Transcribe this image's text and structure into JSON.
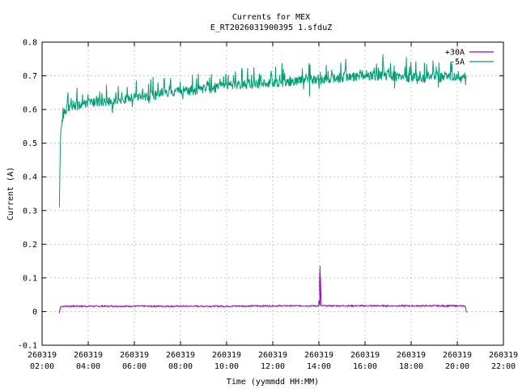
{
  "chart_data": {
    "type": "line",
    "title": "Currents for MEX",
    "subtitle": "E_RT2026031900395 1.sfduZ",
    "xlabel": "Time (yymmdd HH:MM)",
    "ylabel": "Current (A)",
    "ylim": [
      -0.1,
      0.8
    ],
    "yticks": [
      "-0.1",
      "0",
      "0.1",
      "0.2",
      "0.3",
      "0.4",
      "0.5",
      "0.6",
      "0.7",
      "0.8"
    ],
    "xlim_hours": [
      2,
      22
    ],
    "xticks": [
      {
        "date": "260319",
        "time": "02:00"
      },
      {
        "date": "260319",
        "time": "04:00"
      },
      {
        "date": "260319",
        "time": "06:00"
      },
      {
        "date": "260319",
        "time": "08:00"
      },
      {
        "date": "260319",
        "time": "10:00"
      },
      {
        "date": "260319",
        "time": "12:00"
      },
      {
        "date": "260319",
        "time": "14:00"
      },
      {
        "date": "260319",
        "time": "16:00"
      },
      {
        "date": "260319",
        "time": "18:00"
      },
      {
        "date": "260319",
        "time": "20:00"
      },
      {
        "date": "260319",
        "time": "22:00"
      }
    ],
    "grid": true,
    "legend_position": "top-right",
    "series": [
      {
        "name": "+30A",
        "color": "#9400d3",
        "x_hours": [
          2.75,
          2.8,
          3,
          4,
          6,
          8,
          10,
          12,
          14,
          14.05,
          14.1,
          16,
          18,
          20,
          20.35,
          20.4
        ],
        "values": [
          -0.005,
          0.015,
          0.016,
          0.016,
          0.016,
          0.016,
          0.016,
          0.017,
          0.017,
          0.135,
          0.017,
          0.017,
          0.017,
          0.017,
          0.016,
          -0.003
        ]
      },
      {
        "name": "-5A",
        "color": "#009e73",
        "x_hours": [
          2.75,
          2.8,
          2.9,
          3,
          3.5,
          4,
          5,
          6,
          7,
          8,
          9,
          10,
          11,
          12,
          13,
          14,
          15,
          16,
          17,
          18,
          19,
          20,
          20.4
        ],
        "values": [
          0.31,
          0.53,
          0.58,
          0.6,
          0.61,
          0.62,
          0.625,
          0.635,
          0.645,
          0.655,
          0.66,
          0.67,
          0.675,
          0.68,
          0.685,
          0.69,
          0.695,
          0.7,
          0.7,
          0.695,
          0.695,
          0.7,
          0.685
        ]
      }
    ]
  }
}
